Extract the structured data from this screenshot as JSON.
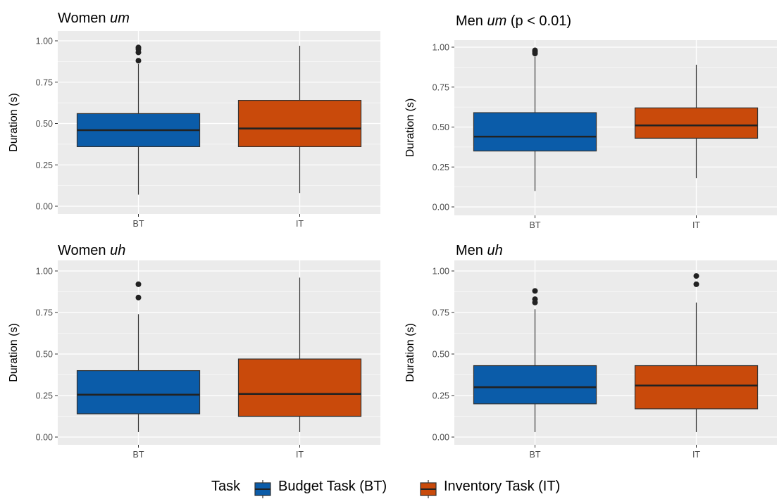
{
  "chart_data": [
    {
      "type": "boxplot",
      "title": "Women um",
      "title_parts": {
        "prefix": "Women",
        "italic": "um",
        "suffix": ""
      },
      "xlabel": "",
      "ylabel": "Duration (s)",
      "ylim": [
        0,
        1
      ],
      "yticks": [
        "0.00",
        "0.25",
        "0.50",
        "0.75",
        "1.00"
      ],
      "yticks_values": [
        0,
        0.25,
        0.5,
        0.75,
        1.0
      ],
      "categories": [
        "BT",
        "IT"
      ],
      "boxes": [
        {
          "category": "BT",
          "series": "Budget Task (BT)",
          "min": 0.07,
          "q1": 0.36,
          "median": 0.46,
          "q3": 0.56,
          "max": 0.86,
          "outliers": [
            0.88,
            0.93,
            0.95,
            0.96
          ]
        },
        {
          "category": "IT",
          "series": "Inventory Task (IT)",
          "min": 0.08,
          "q1": 0.36,
          "median": 0.47,
          "q3": 0.64,
          "max": 0.97,
          "outliers": []
        }
      ]
    },
    {
      "type": "boxplot",
      "title": "Men um (p < 0.01)",
      "title_parts": {
        "prefix": "Men",
        "italic": "um",
        "suffix": "(p < 0.01)"
      },
      "xlabel": "",
      "ylabel": "Duration (s)",
      "ylim": [
        0,
        1
      ],
      "yticks": [
        "0.00",
        "0.25",
        "0.50",
        "0.75",
        "1.00"
      ],
      "yticks_values": [
        0,
        0.25,
        0.5,
        0.75,
        1.0
      ],
      "categories": [
        "BT",
        "IT"
      ],
      "boxes": [
        {
          "category": "BT",
          "series": "Budget Task (BT)",
          "min": 0.1,
          "q1": 0.35,
          "median": 0.44,
          "q3": 0.59,
          "max": 0.94,
          "outliers": [
            0.96,
            0.97,
            0.98
          ]
        },
        {
          "category": "IT",
          "series": "Inventory Task (IT)",
          "min": 0.18,
          "q1": 0.43,
          "median": 0.51,
          "q3": 0.62,
          "max": 0.89,
          "outliers": []
        }
      ]
    },
    {
      "type": "boxplot",
      "title": "Women uh",
      "title_parts": {
        "prefix": "Women",
        "italic": "uh",
        "suffix": ""
      },
      "xlabel": "",
      "ylabel": "Duration (s)",
      "ylim": [
        0,
        1
      ],
      "yticks": [
        "0.00",
        "0.25",
        "0.50",
        "0.75",
        "1.00"
      ],
      "yticks_values": [
        0,
        0.25,
        0.5,
        0.75,
        1.0
      ],
      "categories": [
        "BT",
        "IT"
      ],
      "boxes": [
        {
          "category": "BT",
          "series": "Budget Task (BT)",
          "min": 0.03,
          "q1": 0.14,
          "median": 0.255,
          "q3": 0.4,
          "max": 0.74,
          "outliers": [
            0.84,
            0.92
          ]
        },
        {
          "category": "IT",
          "series": "Inventory Task (IT)",
          "min": 0.03,
          "q1": 0.125,
          "median": 0.26,
          "q3": 0.47,
          "max": 0.96,
          "outliers": []
        }
      ]
    },
    {
      "type": "boxplot",
      "title": "Men uh",
      "title_parts": {
        "prefix": "Men",
        "italic": "uh",
        "suffix": ""
      },
      "xlabel": "",
      "ylabel": "Duration (s)",
      "ylim": [
        0,
        1
      ],
      "yticks": [
        "0.00",
        "0.25",
        "0.50",
        "0.75",
        "1.00"
      ],
      "yticks_values": [
        0,
        0.25,
        0.5,
        0.75,
        1.0
      ],
      "categories": [
        "BT",
        "IT"
      ],
      "boxes": [
        {
          "category": "BT",
          "series": "Budget Task (BT)",
          "min": 0.03,
          "q1": 0.2,
          "median": 0.3,
          "q3": 0.43,
          "max": 0.77,
          "outliers": [
            0.81,
            0.83,
            0.88
          ]
        },
        {
          "category": "IT",
          "series": "Inventory Task (IT)",
          "min": 0.03,
          "q1": 0.17,
          "median": 0.31,
          "q3": 0.43,
          "max": 0.81,
          "outliers": [
            0.92,
            0.97
          ]
        }
      ]
    }
  ],
  "legend": {
    "title": "Task",
    "position": "bottom",
    "items": [
      {
        "label": "Budget Task (BT)",
        "color": "#0b5ca9"
      },
      {
        "label": "Inventory Task (IT)",
        "color": "#c94a0b"
      }
    ]
  },
  "colors": {
    "panel_background": "#ebebeb",
    "grid": "#ffffff",
    "Budget Task (BT)": "#0b5ca9",
    "Inventory Task (IT)": "#c94a0b",
    "outline": "#333333"
  }
}
